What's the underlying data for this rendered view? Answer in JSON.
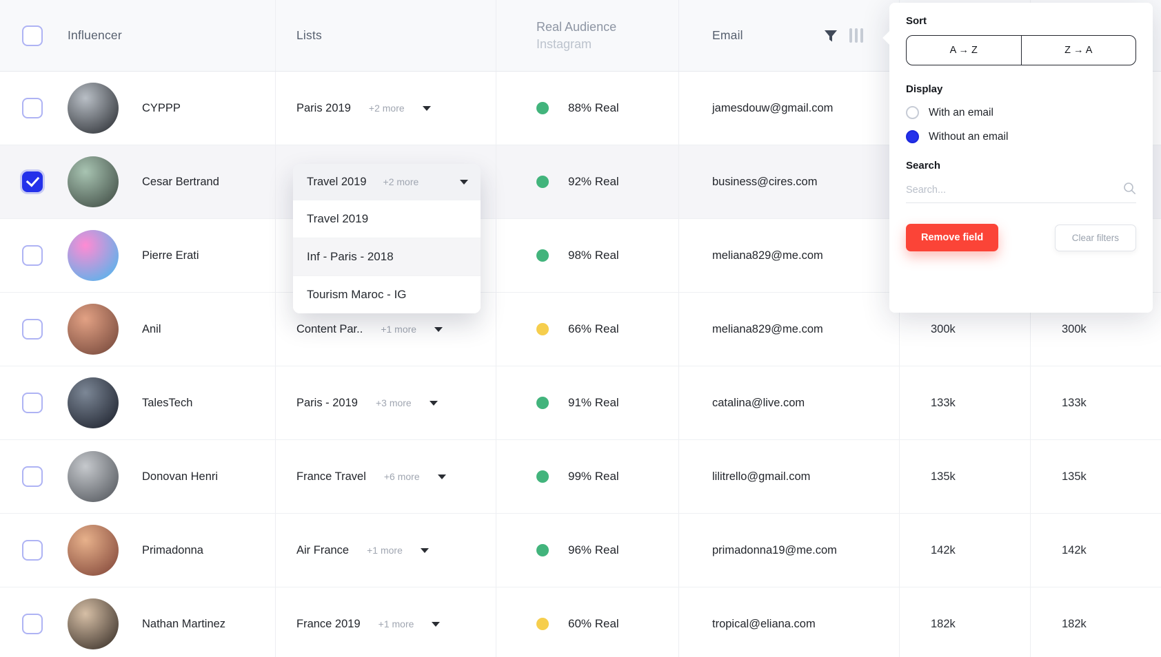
{
  "colors": {
    "green": "#42b47c",
    "yellow": "#f6ce4d",
    "accent_blue": "#2431ea",
    "remove_red": "#fb4437"
  },
  "header": {
    "influencer": "Influencer",
    "lists": "Lists",
    "real_audience": "Real Audience",
    "real_audience_sub": "Instagram",
    "email": "Email"
  },
  "rows": [
    {
      "name": "CYPPP",
      "list": "Paris 2019",
      "more": "+2 more",
      "real_pct": "88% Real",
      "status": "green",
      "email": "jamesdouw@gmail.com",
      "followers_ig": "",
      "followers_other": "",
      "checked": false,
      "selected": false,
      "avatar": [
        "#b9bfc6",
        "#23262b"
      ]
    },
    {
      "name": "Cesar Bertrand",
      "list": "Travel 2019",
      "more": "+2 more",
      "real_pct": "92% Real",
      "status": "green",
      "email": "business@cires.com",
      "followers_ig": "",
      "followers_other": "",
      "checked": true,
      "selected": true,
      "avatar": [
        "#a8c4b2",
        "#39443d"
      ]
    },
    {
      "name": "Pierre Erati",
      "list": "",
      "more": "",
      "real_pct": "98% Real",
      "status": "green",
      "email": "meliana829@me.com",
      "followers_ig": "",
      "followers_other": "",
      "checked": false,
      "selected": false,
      "avatar": [
        "#ff8bd3",
        "#3fb9ef"
      ]
    },
    {
      "name": "Anil",
      "list": "Content Par..",
      "more": "+1 more",
      "real_pct": "66% Real",
      "status": "yellow",
      "email": "meliana829@me.com",
      "followers_ig": "300k",
      "followers_other": "300k",
      "checked": false,
      "selected": false,
      "avatar": [
        "#e2a184",
        "#6e4236"
      ]
    },
    {
      "name": "TalesTech",
      "list": "Paris - 2019",
      "more": "+3 more",
      "real_pct": "91% Real",
      "status": "green",
      "email": "catalina@live.com",
      "followers_ig": "133k",
      "followers_other": "133k",
      "checked": false,
      "selected": false,
      "avatar": [
        "#7c8796",
        "#171b26"
      ]
    },
    {
      "name": "Donovan Henri",
      "list": "France Travel",
      "more": "+6 more",
      "real_pct": "99% Real",
      "status": "green",
      "email": "lilitrello@gmail.com",
      "followers_ig": "135k",
      "followers_other": "135k",
      "checked": false,
      "selected": false,
      "avatar": [
        "#c6c9cd",
        "#4b4f55"
      ]
    },
    {
      "name": "Primadonna",
      "list": "Air France",
      "more": "+1 more",
      "real_pct": "96% Real",
      "status": "green",
      "email": "primadonna19@me.com",
      "followers_ig": "142k",
      "followers_other": "142k",
      "checked": false,
      "selected": false,
      "avatar": [
        "#e7b18b",
        "#7c4034"
      ]
    },
    {
      "name": "Nathan Martinez",
      "list": "France 2019",
      "more": "+1 more",
      "real_pct": "60% Real",
      "status": "yellow",
      "email": "tropical@eliana.com",
      "followers_ig": "182k",
      "followers_other": "182k",
      "checked": false,
      "selected": false,
      "avatar": [
        "#d6bfa6",
        "#2f2620"
      ]
    }
  ],
  "dropdown": {
    "trigger_list": "Travel 2019",
    "trigger_more": "+2 more",
    "items": [
      {
        "label": "Travel 2019",
        "highlighted": false
      },
      {
        "label": "Inf - Paris - 2018",
        "highlighted": true
      },
      {
        "label": "Tourism Maroc - IG",
        "highlighted": false
      }
    ]
  },
  "filter_panel": {
    "sort_label": "Sort",
    "sort_az": "A → Z",
    "sort_za": "Z → A",
    "display_label": "Display",
    "display_options": [
      {
        "label": "With an email",
        "selected": false
      },
      {
        "label": "Without an email",
        "selected": true
      }
    ],
    "search_label": "Search",
    "search_placeholder": "Search...",
    "remove_field_label": "Remove field",
    "clear_filters_label": "Clear filters"
  }
}
